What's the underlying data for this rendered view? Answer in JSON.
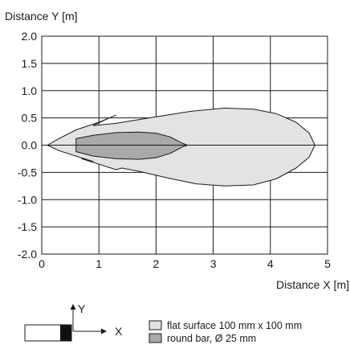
{
  "chart_data": {
    "type": "area",
    "ylabel": "Distance Y [m]",
    "xlabel": "Distance X [m]",
    "xlim": [
      0,
      5
    ],
    "ylim": [
      -2.0,
      2.0
    ],
    "x_ticks": [
      "0",
      "1",
      "2",
      "3",
      "4",
      "5"
    ],
    "y_ticks": [
      "2.0",
      "1.5",
      "1.0",
      "0.5",
      "0.0",
      "-0.5",
      "-1.0",
      "-1.5",
      "-2.0"
    ],
    "grid": true,
    "series": [
      {
        "name": "flat surface 100 mm x 100 mm",
        "color": "#e3e3e3",
        "outline": [
          [
            0.1,
            0.0
          ],
          [
            0.3,
            0.12
          ],
          [
            0.6,
            0.28
          ],
          [
            1.0,
            0.42
          ],
          [
            1.3,
            0.55
          ],
          [
            1.1,
            0.46
          ],
          [
            0.9,
            0.36
          ],
          [
            1.3,
            0.4
          ],
          [
            2.0,
            0.52
          ],
          [
            2.6,
            0.62
          ],
          [
            3.2,
            0.68
          ],
          [
            3.7,
            0.66
          ],
          [
            4.1,
            0.58
          ],
          [
            4.45,
            0.42
          ],
          [
            4.68,
            0.22
          ],
          [
            4.78,
            0.0
          ],
          [
            4.68,
            -0.22
          ],
          [
            4.45,
            -0.42
          ],
          [
            4.1,
            -0.62
          ],
          [
            3.7,
            -0.73
          ],
          [
            3.2,
            -0.75
          ],
          [
            2.7,
            -0.71
          ],
          [
            2.2,
            -0.6
          ],
          [
            1.7,
            -0.48
          ],
          [
            1.4,
            -0.42
          ],
          [
            1.3,
            -0.45
          ],
          [
            1.0,
            -0.35
          ],
          [
            0.7,
            -0.25
          ],
          [
            0.9,
            -0.3
          ],
          [
            0.6,
            -0.2
          ],
          [
            0.3,
            -0.1
          ],
          [
            0.1,
            0.0
          ]
        ]
      },
      {
        "name": "round bar, Ø 25 mm",
        "color": "#a9a9a9",
        "outline": [
          [
            0.6,
            -0.12
          ],
          [
            0.6,
            0.12
          ],
          [
            0.9,
            0.18
          ],
          [
            1.3,
            0.23
          ],
          [
            1.7,
            0.24
          ],
          [
            2.0,
            0.22
          ],
          [
            2.25,
            0.15
          ],
          [
            2.45,
            0.04
          ],
          [
            2.55,
            0.0
          ],
          [
            2.45,
            -0.04
          ],
          [
            2.25,
            -0.15
          ],
          [
            2.0,
            -0.23
          ],
          [
            1.7,
            -0.26
          ],
          [
            1.3,
            -0.25
          ],
          [
            0.9,
            -0.2
          ],
          [
            0.6,
            -0.12
          ]
        ]
      }
    ],
    "legend": {
      "placement": "bottom-right",
      "items": [
        {
          "label": "flat surface 100 mm x 100 mm",
          "color": "#e3e3e3"
        },
        {
          "label": "round bar, Ø 25 mm",
          "color": "#a9a9a9"
        }
      ]
    },
    "sensor_diagram": {
      "x_axis_label": "X",
      "y_axis_label": "Y"
    }
  }
}
